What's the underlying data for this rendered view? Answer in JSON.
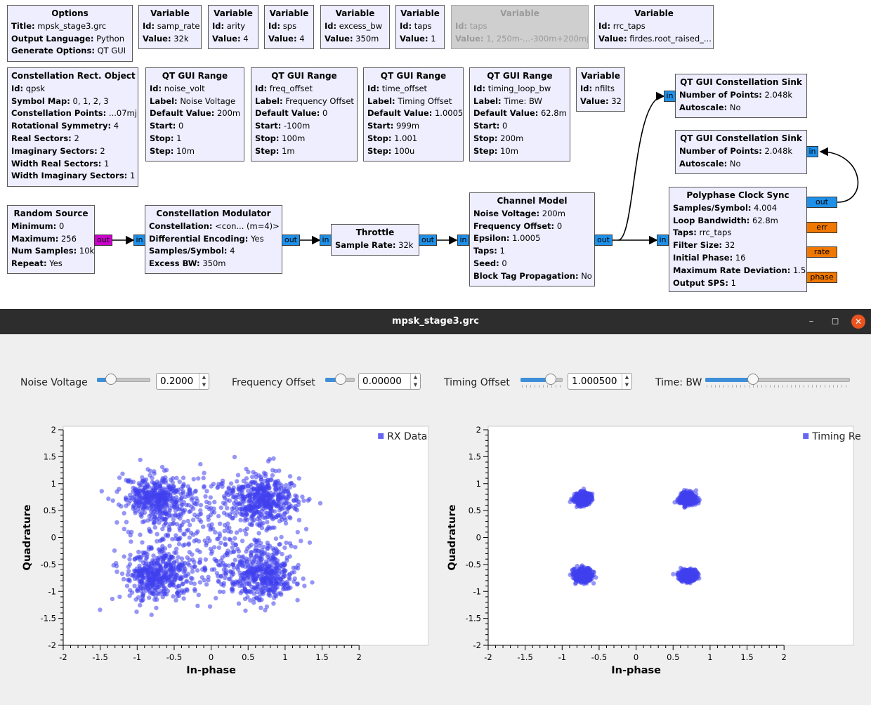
{
  "flowgraph": {
    "options": {
      "title": "Options",
      "rows": [
        {
          "k": "Title:",
          "v": "mpsk_stage3.grc"
        },
        {
          "k": "Output Language:",
          "v": "Python"
        },
        {
          "k": "Generate Options:",
          "v": "QT GUI"
        }
      ]
    },
    "var_samp_rate": {
      "title": "Variable",
      "rows": [
        {
          "k": "Id:",
          "v": "samp_rate"
        },
        {
          "k": "Value:",
          "v": "32k"
        }
      ]
    },
    "var_arity": {
      "title": "Variable",
      "rows": [
        {
          "k": "Id:",
          "v": "arity"
        },
        {
          "k": "Value:",
          "v": "4"
        }
      ]
    },
    "var_sps": {
      "title": "Variable",
      "rows": [
        {
          "k": "Id:",
          "v": "sps"
        },
        {
          "k": "Value:",
          "v": "4"
        }
      ]
    },
    "var_excess_bw": {
      "title": "Variable",
      "rows": [
        {
          "k": "Id:",
          "v": "excess_bw"
        },
        {
          "k": "Value:",
          "v": "350m"
        }
      ]
    },
    "var_taps": {
      "title": "Variable",
      "rows": [
        {
          "k": "Id:",
          "v": "taps"
        },
        {
          "k": "Value:",
          "v": "1"
        }
      ]
    },
    "var_taps_disabled": {
      "title": "Variable",
      "rows": [
        {
          "k": "Id:",
          "v": "taps"
        },
        {
          "k": "Value:",
          "v": "1, 250m-...-300m+200mj"
        }
      ]
    },
    "var_rrc_taps": {
      "title": "Variable",
      "rows": [
        {
          "k": "Id:",
          "v": "rrc_taps"
        },
        {
          "k": "Value:",
          "v": "firdes.root_raised_..."
        }
      ]
    },
    "constellation_obj": {
      "title": "Constellation Rect. Object",
      "rows": [
        {
          "k": "Id:",
          "v": "qpsk"
        },
        {
          "k": "Symbol Map:",
          "v": "0, 1, 2, 3"
        },
        {
          "k": "Constellation Points:",
          "v": "...07mj"
        },
        {
          "k": "Rotational Symmetry:",
          "v": "4"
        },
        {
          "k": "Real Sectors:",
          "v": "2"
        },
        {
          "k": "Imaginary Sectors:",
          "v": "2"
        },
        {
          "k": "Width Real Sectors:",
          "v": "1"
        },
        {
          "k": "Width Imaginary Sectors:",
          "v": "1"
        }
      ]
    },
    "range_noise": {
      "title": "QT GUI Range",
      "rows": [
        {
          "k": "Id:",
          "v": "noise_volt"
        },
        {
          "k": "Label:",
          "v": "Noise Voltage"
        },
        {
          "k": "Default Value:",
          "v": "200m"
        },
        {
          "k": "Start:",
          "v": "0"
        },
        {
          "k": "Stop:",
          "v": "1"
        },
        {
          "k": "Step:",
          "v": "10m"
        }
      ]
    },
    "range_freq": {
      "title": "QT GUI Range",
      "rows": [
        {
          "k": "Id:",
          "v": "freq_offset"
        },
        {
          "k": "Label:",
          "v": "Frequency Offset"
        },
        {
          "k": "Default Value:",
          "v": "0"
        },
        {
          "k": "Start:",
          "v": "-100m"
        },
        {
          "k": "Stop:",
          "v": "100m"
        },
        {
          "k": "Step:",
          "v": "1m"
        }
      ]
    },
    "range_time": {
      "title": "QT GUI Range",
      "rows": [
        {
          "k": "Id:",
          "v": "time_offset"
        },
        {
          "k": "Label:",
          "v": "Timing Offset"
        },
        {
          "k": "Default Value:",
          "v": "1.0005"
        },
        {
          "k": "Start:",
          "v": "999m"
        },
        {
          "k": "Stop:",
          "v": "1.001"
        },
        {
          "k": "Step:",
          "v": "100u"
        }
      ]
    },
    "range_loop": {
      "title": "QT GUI Range",
      "rows": [
        {
          "k": "Id:",
          "v": "timing_loop_bw"
        },
        {
          "k": "Label:",
          "v": "Time: BW"
        },
        {
          "k": "Default Value:",
          "v": "62.8m"
        },
        {
          "k": "Start:",
          "v": "0"
        },
        {
          "k": "Stop:",
          "v": "200m"
        },
        {
          "k": "Step:",
          "v": "10m"
        }
      ]
    },
    "var_nfilts": {
      "title": "Variable",
      "rows": [
        {
          "k": "Id:",
          "v": "nfilts"
        },
        {
          "k": "Value:",
          "v": "32"
        }
      ]
    },
    "sink1": {
      "title": "QT GUI Constellation Sink",
      "rows": [
        {
          "k": "Number of Points:",
          "v": "2.048k"
        },
        {
          "k": "Autoscale:",
          "v": "No"
        }
      ]
    },
    "sink2": {
      "title": "QT GUI Constellation Sink",
      "rows": [
        {
          "k": "Number of Points:",
          "v": "2.048k"
        },
        {
          "k": "Autoscale:",
          "v": "No"
        }
      ]
    },
    "random_source": {
      "title": "Random Source",
      "rows": [
        {
          "k": "Minimum:",
          "v": "0"
        },
        {
          "k": "Maximum:",
          "v": "256"
        },
        {
          "k": "Num Samples:",
          "v": "10k"
        },
        {
          "k": "Repeat:",
          "v": "Yes"
        }
      ]
    },
    "modulator": {
      "title": "Constellation Modulator",
      "rows": [
        {
          "k": "Constellation:",
          "v": "<con... (m=4)>"
        },
        {
          "k": "Differential Encoding:",
          "v": "Yes"
        },
        {
          "k": "Samples/Symbol:",
          "v": "4"
        },
        {
          "k": "Excess BW:",
          "v": "350m"
        }
      ]
    },
    "throttle": {
      "title": "Throttle",
      "rows": [
        {
          "k": "Sample Rate:",
          "v": "32k"
        }
      ]
    },
    "channel": {
      "title": "Channel Model",
      "rows": [
        {
          "k": "Noise Voltage:",
          "v": "200m"
        },
        {
          "k": "Frequency Offset:",
          "v": "0"
        },
        {
          "k": "Epsilon:",
          "v": "1.0005"
        },
        {
          "k": "Taps:",
          "v": "1"
        },
        {
          "k": "Seed:",
          "v": "0"
        },
        {
          "k": "Block Tag Propagation:",
          "v": "No"
        }
      ]
    },
    "clock_sync": {
      "title": "Polyphase Clock Sync",
      "rows": [
        {
          "k": "Samples/Symbol:",
          "v": "4.004"
        },
        {
          "k": "Loop Bandwidth:",
          "v": "62.8m"
        },
        {
          "k": "Taps:",
          "v": "rrc_taps"
        },
        {
          "k": "Filter Size:",
          "v": "32"
        },
        {
          "k": "Initial Phase:",
          "v": "16"
        },
        {
          "k": "Maximum Rate Deviation:",
          "v": "1.5"
        },
        {
          "k": "Output SPS:",
          "v": "1"
        }
      ]
    },
    "ports": {
      "in": "in",
      "out": "out",
      "err": "err",
      "rate": "rate",
      "phase": "phase"
    }
  },
  "window": {
    "title": "mpsk_stage3.grc",
    "minimize_icon": "minimize-icon",
    "maximize_icon": "maximize-icon",
    "close_icon": "close-icon"
  },
  "controls": {
    "noise": {
      "label": "Noise Voltage",
      "value": "0.2000",
      "level": 0.2
    },
    "freq": {
      "label": "Frequency Offset",
      "value": "0.00000",
      "level": 0.5
    },
    "timing": {
      "label": "Timing Offset",
      "value": "1.000500",
      "level": 0.75
    },
    "timebw": {
      "label": "Time: BW",
      "level": 0.314
    }
  },
  "colors": {
    "accent": "#3c8fd8",
    "points": "#4040ee",
    "port_complex": "#1e90e8",
    "port_byte": "#cc00cc",
    "port_float": "#f07800",
    "close": "#e95420"
  },
  "chart_data": [
    {
      "type": "scatter",
      "legend": "RX Data",
      "xlabel": "In-phase",
      "ylabel": "Quadrature",
      "xlim": [
        -2,
        2
      ],
      "ylim": [
        -2,
        2
      ],
      "xticks": [
        "-2",
        "-1.5",
        "-1",
        "-0.5",
        "0",
        "0.5",
        "1",
        "1.5",
        "2"
      ],
      "yticks": [
        "2",
        "1.5",
        "1",
        "0.5",
        "0",
        "-0.5",
        "-1",
        "-1.5",
        "-2"
      ],
      "clusters": [
        {
          "x": -0.72,
          "y": 0.72
        },
        {
          "x": 0.72,
          "y": 0.72
        },
        {
          "x": -0.72,
          "y": -0.72
        },
        {
          "x": 0.72,
          "y": -0.72
        }
      ],
      "spread": 0.22,
      "transition_fraction": 0.35,
      "points_shown": 2048,
      "grid": false,
      "legend_position": "top-right"
    },
    {
      "type": "scatter",
      "legend": "Timing Recov.",
      "xlabel": "In-phase",
      "ylabel": "Quadrature",
      "xlim": [
        -2,
        2
      ],
      "ylim": [
        -2,
        2
      ],
      "xticks": [
        "-2",
        "-1.5",
        "-1",
        "-0.5",
        "0",
        "0.5",
        "1",
        "1.5",
        "2"
      ],
      "yticks": [
        "2",
        "1.5",
        "1",
        "0.5",
        "0",
        "-0.5",
        "-1",
        "-1.5",
        "-2"
      ],
      "clusters": [
        {
          "x": -0.72,
          "y": 0.72
        },
        {
          "x": 0.7,
          "y": 0.72
        },
        {
          "x": -0.72,
          "y": -0.7
        },
        {
          "x": 0.7,
          "y": -0.7
        }
      ],
      "spread": 0.055,
      "transition_fraction": 0,
      "points_shown": 2048,
      "grid": false,
      "legend_position": "top-right"
    }
  ]
}
